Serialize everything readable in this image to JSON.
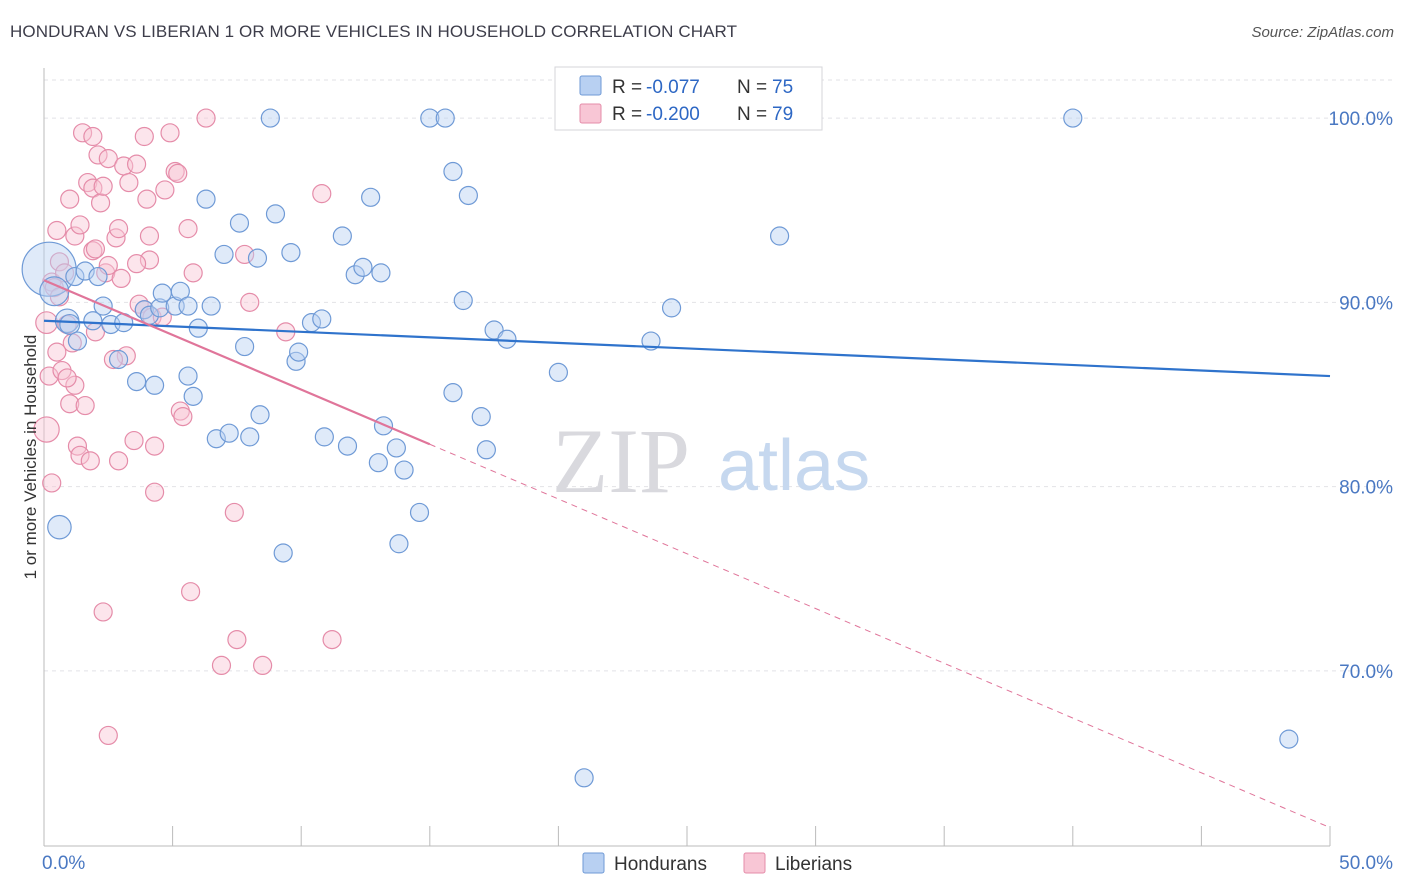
{
  "title": "HONDURAN VS LIBERIAN 1 OR MORE VEHICLES IN HOUSEHOLD CORRELATION CHART",
  "source": "Source: ZipAtlas.com",
  "watermark": {
    "zip": "ZIP",
    "atlas": "atlas"
  },
  "colors": {
    "blue_fill": "#b8d0f2",
    "blue_stroke": "#6f9ad6",
    "blue_line": "#2f73cc",
    "pink_fill": "#f8c6d5",
    "pink_stroke": "#e58ca9",
    "pink_line": "#e0759a",
    "grid": "#e2e2e6",
    "axis_label": "#4a78c2"
  },
  "legend_top": {
    "rows": [
      {
        "r_label": "R = ",
        "r_value": "-0.077",
        "n_label": "N = ",
        "n_value": "75"
      },
      {
        "r_label": "R = ",
        "r_value": "-0.200",
        "n_label": "N = ",
        "n_value": "79"
      }
    ]
  },
  "legend_bottom": [
    "Hondurans",
    "Liberians"
  ],
  "chart_data": {
    "type": "scatter",
    "title": "HONDURAN VS LIBERIAN 1 OR MORE VEHICLES IN HOUSEHOLD CORRELATION CHART",
    "xlabel": "",
    "ylabel": "1 or more Vehicles in Household",
    "xlim": [
      0,
      50
    ],
    "ylim": [
      60.5,
      102.5
    ],
    "x_ticks": [
      {
        "value": 0,
        "label": "0.0%"
      },
      {
        "value": 50,
        "label": "50.0%"
      }
    ],
    "y_ticks": [
      {
        "value": 70,
        "label": "70.0%"
      },
      {
        "value": 80,
        "label": "80.0%"
      },
      {
        "value": 90,
        "label": "90.0%"
      },
      {
        "value": 100,
        "label": "100.0%"
      }
    ],
    "grid": true,
    "legend": "top-center",
    "series": [
      {
        "name": "Hondurans",
        "r": -0.077,
        "n": 75,
        "trend": {
          "x": [
            0,
            50
          ],
          "y": [
            89.0,
            86.0
          ]
        },
        "points": [
          [
            0.2,
            91.8,
            3
          ],
          [
            0.4,
            90.6,
            1.6
          ],
          [
            0.6,
            77.8,
            1.3
          ],
          [
            0.9,
            89.0,
            1.3
          ],
          [
            1.0,
            88.8,
            1.1
          ],
          [
            1.2,
            91.4,
            1.0
          ],
          [
            1.3,
            87.9,
            1.0
          ],
          [
            1.6,
            91.7,
            1.0
          ],
          [
            1.9,
            89.0,
            1.0
          ],
          [
            2.1,
            91.4,
            1.0
          ],
          [
            2.3,
            89.8,
            1.0
          ],
          [
            2.6,
            88.8,
            1.0
          ],
          [
            2.9,
            86.9,
            1.0
          ],
          [
            3.1,
            88.9,
            1.0
          ],
          [
            3.6,
            85.7,
            1.0
          ],
          [
            3.9,
            89.6,
            1.0
          ],
          [
            4.1,
            89.3,
            1.0
          ],
          [
            4.3,
            85.5,
            1.0
          ],
          [
            4.5,
            89.7,
            1.0
          ],
          [
            4.6,
            90.5,
            1.0
          ],
          [
            5.1,
            89.8,
            1.0
          ],
          [
            5.3,
            90.6,
            1.0
          ],
          [
            5.6,
            89.8,
            1.0
          ],
          [
            5.6,
            86.0,
            1.0
          ],
          [
            5.8,
            84.9,
            1.0
          ],
          [
            6.0,
            88.6,
            1.0
          ],
          [
            6.3,
            95.6,
            1.0
          ],
          [
            6.5,
            89.8,
            1.0
          ],
          [
            6.7,
            82.6,
            1.0
          ],
          [
            7.0,
            92.6,
            1.0
          ],
          [
            7.2,
            82.9,
            1.0
          ],
          [
            7.6,
            94.3,
            1.0
          ],
          [
            7.8,
            87.6,
            1.0
          ],
          [
            8.0,
            82.7,
            1.0
          ],
          [
            8.3,
            92.4,
            1.0
          ],
          [
            8.4,
            83.9,
            1.0
          ],
          [
            8.8,
            100.0,
            1.0
          ],
          [
            9.0,
            94.8,
            1.0
          ],
          [
            9.3,
            76.4,
            1.0
          ],
          [
            9.6,
            92.7,
            1.0
          ],
          [
            9.8,
            86.8,
            1.0
          ],
          [
            9.9,
            87.3,
            1.0
          ],
          [
            10.4,
            88.9,
            1.0
          ],
          [
            10.8,
            89.1,
            1.0
          ],
          [
            10.9,
            82.7,
            1.0
          ],
          [
            11.6,
            93.6,
            1.0
          ],
          [
            11.8,
            82.2,
            1.0
          ],
          [
            12.1,
            91.5,
            1.0
          ],
          [
            12.4,
            91.9,
            1.0
          ],
          [
            12.7,
            95.7,
            1.0
          ],
          [
            13.0,
            81.3,
            1.0
          ],
          [
            13.1,
            91.6,
            1.0
          ],
          [
            13.2,
            83.3,
            1.0
          ],
          [
            13.8,
            76.9,
            1.0
          ],
          [
            13.7,
            82.1,
            1.0
          ],
          [
            14.0,
            80.9,
            1.0
          ],
          [
            14.6,
            78.6,
            1.0
          ],
          [
            15.0,
            100.0,
            1.0
          ],
          [
            15.6,
            100.0,
            1.0
          ],
          [
            15.9,
            85.1,
            1.0
          ],
          [
            15.9,
            97.1,
            1.0
          ],
          [
            16.3,
            90.1,
            1.0
          ],
          [
            16.5,
            95.8,
            1.0
          ],
          [
            17.0,
            83.8,
            1.0
          ],
          [
            17.2,
            82.0,
            1.0
          ],
          [
            17.5,
            88.5,
            1.0
          ],
          [
            18.0,
            88.0,
            1.0
          ],
          [
            20.0,
            86.2,
            1.0
          ],
          [
            21.0,
            64.2,
            1.0
          ],
          [
            23.6,
            87.9,
            1.0
          ],
          [
            24.4,
            89.7,
            1.0
          ],
          [
            28.6,
            93.6,
            1.0
          ],
          [
            28.8,
            100.0,
            1.0
          ],
          [
            40.0,
            100.0,
            1.0
          ],
          [
            48.4,
            66.3,
            1.0
          ]
        ]
      },
      {
        "name": "Liberians",
        "r": -0.2,
        "n": 79,
        "trend": {
          "x": [
            0,
            15
          ],
          "y": [
            91.2,
            82.3
          ]
        },
        "trend_extended": {
          "x": [
            15,
            50
          ],
          "y": [
            82.3,
            61.5
          ]
        },
        "points": [
          [
            0.1,
            83.1,
            1.4
          ],
          [
            0.1,
            88.9,
            1.2
          ],
          [
            0.2,
            86.0,
            1.0
          ],
          [
            0.3,
            91.1,
            1.0
          ],
          [
            0.3,
            80.2,
            1.0
          ],
          [
            0.4,
            90.8,
            1.0
          ],
          [
            0.5,
            87.3,
            1.0
          ],
          [
            0.5,
            93.9,
            1.0
          ],
          [
            0.6,
            92.2,
            1.0
          ],
          [
            0.6,
            90.3,
            1.0
          ],
          [
            0.7,
            86.3,
            1.0
          ],
          [
            0.8,
            91.6,
            1.0
          ],
          [
            0.9,
            88.8,
            1.0
          ],
          [
            1.0,
            84.5,
            1.0
          ],
          [
            1.0,
            95.6,
            1.0
          ],
          [
            1.2,
            93.6,
            1.0
          ],
          [
            1.2,
            85.5,
            1.0
          ],
          [
            1.3,
            82.2,
            1.0
          ],
          [
            1.4,
            94.2,
            1.0
          ],
          [
            1.4,
            81.7,
            1.0
          ],
          [
            1.5,
            99.2,
            1.0
          ],
          [
            1.6,
            84.4,
            1.0
          ],
          [
            1.7,
            96.5,
            1.0
          ],
          [
            1.8,
            81.4,
            1.0
          ],
          [
            1.9,
            92.8,
            1.0
          ],
          [
            1.9,
            96.2,
            1.0
          ],
          [
            1.9,
            99.0,
            1.0
          ],
          [
            2.0,
            88.4,
            1.0
          ],
          [
            2.0,
            92.9,
            1.0
          ],
          [
            2.1,
            98.0,
            1.0
          ],
          [
            2.2,
            95.4,
            1.0
          ],
          [
            2.3,
            73.2,
            1.0
          ],
          [
            2.3,
            96.3,
            1.0
          ],
          [
            2.4,
            91.6,
            1.0
          ],
          [
            2.5,
            92.0,
            1.0
          ],
          [
            2.5,
            97.8,
            1.0
          ],
          [
            2.5,
            66.5,
            1.0
          ],
          [
            2.8,
            93.5,
            1.0
          ],
          [
            2.9,
            81.4,
            1.0
          ],
          [
            2.9,
            94.0,
            1.0
          ],
          [
            3.0,
            91.3,
            1.0
          ],
          [
            3.1,
            97.4,
            1.0
          ],
          [
            3.2,
            87.1,
            1.0
          ],
          [
            3.3,
            96.5,
            1.0
          ],
          [
            3.6,
            97.5,
            1.0
          ],
          [
            3.7,
            89.9,
            1.0
          ],
          [
            3.9,
            99.0,
            1.0
          ],
          [
            3.9,
            89.6,
            1.0
          ],
          [
            4.0,
            95.6,
            1.0
          ],
          [
            4.1,
            92.3,
            1.0
          ],
          [
            4.1,
            93.6,
            1.0
          ],
          [
            4.2,
            89.2,
            1.0
          ],
          [
            4.3,
            79.7,
            1.0
          ],
          [
            4.3,
            82.2,
            1.0
          ],
          [
            4.6,
            89.2,
            1.0
          ],
          [
            4.7,
            96.1,
            1.0
          ],
          [
            4.9,
            99.2,
            1.0
          ],
          [
            5.1,
            97.1,
            1.0
          ],
          [
            5.2,
            97.0,
            1.0
          ],
          [
            5.3,
            84.1,
            1.0
          ],
          [
            5.4,
            83.8,
            1.0
          ],
          [
            5.6,
            94.0,
            1.0
          ],
          [
            5.7,
            74.3,
            1.0
          ],
          [
            5.8,
            91.6,
            1.0
          ],
          [
            6.3,
            100.0,
            1.0
          ],
          [
            6.9,
            70.3,
            1.0
          ],
          [
            7.4,
            78.6,
            1.0
          ],
          [
            7.5,
            71.7,
            1.0
          ],
          [
            7.8,
            92.6,
            1.0
          ],
          [
            8.0,
            90.0,
            1.0
          ],
          [
            8.5,
            70.3,
            1.0
          ],
          [
            9.4,
            88.4,
            1.0
          ],
          [
            10.8,
            95.9,
            1.0
          ],
          [
            11.2,
            71.7,
            1.0
          ],
          [
            3.5,
            82.5,
            1.0
          ],
          [
            2.7,
            86.9,
            1.0
          ],
          [
            1.1,
            87.8,
            1.0
          ],
          [
            0.9,
            85.9,
            1.0
          ],
          [
            3.6,
            92.1,
            1.0
          ]
        ]
      }
    ]
  }
}
